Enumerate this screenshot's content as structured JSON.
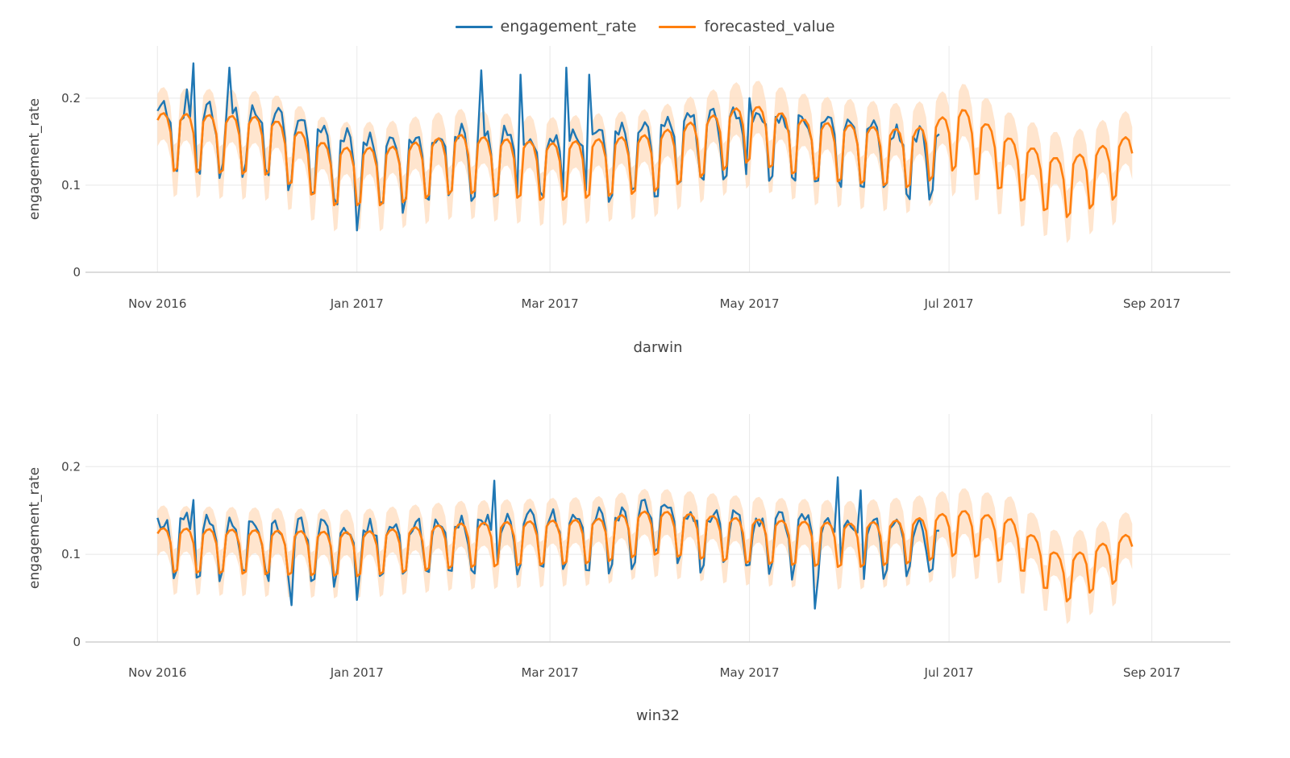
{
  "legend": {
    "items": [
      {
        "label": "engagement_rate",
        "color": "#1f77b4"
      },
      {
        "label": "forecasted_value",
        "color": "#ff7f0e"
      }
    ]
  },
  "colors": {
    "actual": "#1f77b4",
    "forecast": "#ff7f0e",
    "band": "#ffdcbd",
    "grid": "#e8e8e8"
  },
  "chart_data": [
    {
      "type": "line",
      "title": "darwin",
      "ylabel": "engagement_rate",
      "ylim": [
        0,
        0.26
      ],
      "yticks": [
        0,
        0.1,
        0.2
      ],
      "ytick_labels": [
        "0",
        "0.1",
        "0.2"
      ],
      "xlim": [
        "2016-10-10",
        "2017-09-25"
      ],
      "xtick_labels": [
        "Nov 2016",
        "Jan 2017",
        "Mar 2017",
        "May 2017",
        "Jul 2017",
        "Sep 2017"
      ],
      "xtick_dates": [
        "2016-11-01",
        "2017-01-01",
        "2017-03-01",
        "2017-05-01",
        "2017-07-01",
        "2017-09-01"
      ],
      "grid": true,
      "legend": "top-center",
      "series": [
        {
          "name": "engagement_rate",
          "color": "#1f77b4",
          "start": "2016-11-01",
          "end": "2017-06-28",
          "level_points": [
            [
              "2016-11-01",
              0.15
            ],
            [
              "2016-12-05",
              0.15
            ],
            [
              "2016-12-25",
              0.12
            ],
            [
              "2017-01-10",
              0.11
            ],
            [
              "2017-02-01",
              0.125
            ],
            [
              "2017-03-01",
              0.12
            ],
            [
              "2017-04-01",
              0.13
            ],
            [
              "2017-05-01",
              0.15
            ],
            [
              "2017-05-20",
              0.14
            ],
            [
              "2017-06-28",
              0.12
            ]
          ],
          "weekly_amplitude": 0.038,
          "spikes": [
            [
              "2016-11-12",
              0.24
            ],
            [
              "2016-11-23",
              0.235
            ],
            [
              "2016-11-10",
              0.21
            ],
            [
              "2017-02-08",
              0.232
            ],
            [
              "2017-02-20",
              0.227
            ],
            [
              "2017-03-06",
              0.235
            ],
            [
              "2017-03-13",
              0.227
            ],
            [
              "2017-01-01",
              0.048
            ],
            [
              "2017-05-01",
              0.2
            ]
          ]
        },
        {
          "name": "forecasted_value",
          "color": "#ff7f0e",
          "start": "2016-11-01",
          "end": "2017-08-26",
          "level_points": [
            [
              "2016-11-01",
              0.15
            ],
            [
              "2016-12-05",
              0.145
            ],
            [
              "2016-12-25",
              0.11
            ],
            [
              "2017-01-10",
              0.11
            ],
            [
              "2017-02-01",
              0.125
            ],
            [
              "2017-03-01",
              0.115
            ],
            [
              "2017-04-01",
              0.125
            ],
            [
              "2017-05-01",
              0.16
            ],
            [
              "2017-05-20",
              0.14
            ],
            [
              "2017-06-20",
              0.13
            ],
            [
              "2017-07-05",
              0.155
            ],
            [
              "2017-07-20",
              0.12
            ],
            [
              "2017-08-05",
              0.095
            ],
            [
              "2017-08-26",
              0.125
            ]
          ],
          "weekly_amplitude": 0.033,
          "band_halfwidth": 0.03
        }
      ]
    },
    {
      "type": "line",
      "title": "win32",
      "ylabel": "engagement_rate",
      "ylim": [
        0,
        0.26
      ],
      "yticks": [
        0,
        0.1,
        0.2
      ],
      "ytick_labels": [
        "0",
        "0.1",
        "0.2"
      ],
      "xlim": [
        "2016-10-10",
        "2017-09-25"
      ],
      "xtick_labels": [
        "Nov 2016",
        "Jan 2017",
        "Mar 2017",
        "May 2017",
        "Jul 2017",
        "Sep 2017"
      ],
      "xtick_dates": [
        "2016-11-01",
        "2017-01-01",
        "2017-03-01",
        "2017-05-01",
        "2017-07-01",
        "2017-09-01"
      ],
      "grid": true,
      "series": [
        {
          "name": "engagement_rate",
          "color": "#1f77b4",
          "start": "2016-11-01",
          "end": "2017-06-28",
          "level_points": [
            [
              "2016-11-01",
              0.11
            ],
            [
              "2017-01-01",
              0.1
            ],
            [
              "2017-02-01",
              0.11
            ],
            [
              "2017-03-15",
              0.115
            ],
            [
              "2017-04-01",
              0.125
            ],
            [
              "2017-05-01",
              0.11
            ],
            [
              "2017-06-01",
              0.11
            ],
            [
              "2017-06-28",
              0.1
            ]
          ],
          "weekly_amplitude": 0.03,
          "spikes": [
            [
              "2016-11-12",
              0.162
            ],
            [
              "2017-02-12",
              0.184
            ],
            [
              "2017-05-28",
              0.188
            ],
            [
              "2017-06-04",
              0.173
            ],
            [
              "2017-05-21",
              0.038
            ],
            [
              "2016-12-12",
              0.042
            ],
            [
              "2017-01-01",
              0.048
            ]
          ]
        },
        {
          "name": "forecasted_value",
          "color": "#ff7f0e",
          "start": "2016-11-01",
          "end": "2017-08-26",
          "level_points": [
            [
              "2016-11-01",
              0.105
            ],
            [
              "2017-01-01",
              0.1
            ],
            [
              "2017-02-01",
              0.11
            ],
            [
              "2017-03-15",
              0.115
            ],
            [
              "2017-04-01",
              0.125
            ],
            [
              "2017-05-01",
              0.115
            ],
            [
              "2017-06-01",
              0.11
            ],
            [
              "2017-06-20",
              0.115
            ],
            [
              "2017-07-05",
              0.125
            ],
            [
              "2017-07-20",
              0.115
            ],
            [
              "2017-08-05",
              0.07
            ],
            [
              "2017-08-26",
              0.1
            ]
          ],
          "weekly_amplitude": 0.025,
          "band_halfwidth": 0.026
        }
      ]
    }
  ]
}
